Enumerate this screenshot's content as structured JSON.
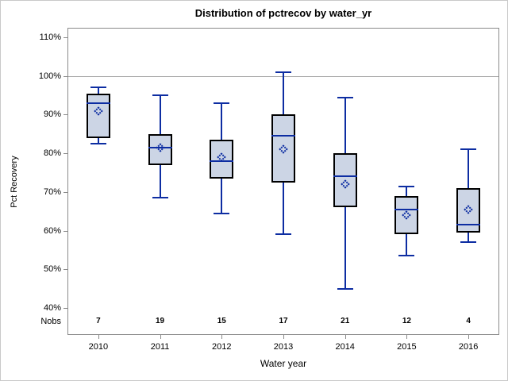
{
  "figure": {
    "title": "Distribution of pctrecov by water_yr",
    "y_axis_title": "Pct Recovery",
    "x_axis_title": "Water year",
    "nobs_label": "Nobs"
  },
  "colors": {
    "box_fill": "#ccd5e5",
    "box_border": "#000000",
    "whisker_median_blue": "#0d2da2",
    "reference_line_gray": "#a6a6a6",
    "plot_border_gray": "#8a8a8a",
    "figure_border_gray": "#c9c9c9",
    "text": "#000000"
  },
  "chart_data": {
    "type": "boxplot",
    "title": "Distribution of pctrecov by water_yr",
    "xlabel": "Water year",
    "ylabel": "Pct Recovery",
    "y_tick_labels": [
      "110%",
      "100%",
      "90%",
      "80%",
      "70%",
      "60%",
      "50%",
      "40%"
    ],
    "ylim": [
      40,
      110
    ],
    "reference_line_percent": 100,
    "grid": false,
    "legend": false,
    "categories": [
      "2010",
      "2011",
      "2012",
      "2013",
      "2014",
      "2015",
      "2016"
    ],
    "nobs_row_label": "Nobs",
    "series": [
      {
        "category": "2010",
        "nobs": 7,
        "whisker_low": 82.5,
        "q1": 84,
        "median": 93,
        "q3": 95.5,
        "whisker_high": 97,
        "mean": 91
      },
      {
        "category": "2011",
        "nobs": 19,
        "whisker_low": 68.5,
        "q1": 77,
        "median": 81.5,
        "q3": 85,
        "whisker_high": 95,
        "mean": 81.5
      },
      {
        "category": "2012",
        "nobs": 15,
        "whisker_low": 64.5,
        "q1": 73.5,
        "median": 78,
        "q3": 83.5,
        "whisker_high": 93,
        "mean": 79
      },
      {
        "category": "2013",
        "nobs": 17,
        "whisker_low": 59,
        "q1": 72.5,
        "median": 84.5,
        "q3": 90,
        "whisker_high": 101,
        "mean": 81
      },
      {
        "category": "2014",
        "nobs": 21,
        "whisker_low": 45,
        "q1": 66,
        "median": 74,
        "q3": 80,
        "whisker_high": 94.5,
        "mean": 72
      },
      {
        "category": "2015",
        "nobs": 12,
        "whisker_low": 53.5,
        "q1": 59,
        "median": 65.5,
        "q3": 69,
        "whisker_high": 71.5,
        "mean": 64
      },
      {
        "category": "2016",
        "nobs": 4,
        "whisker_low": 57,
        "q1": 59.5,
        "median": 61.5,
        "q3": 71,
        "whisker_high": 81,
        "mean": 65.5
      }
    ]
  }
}
